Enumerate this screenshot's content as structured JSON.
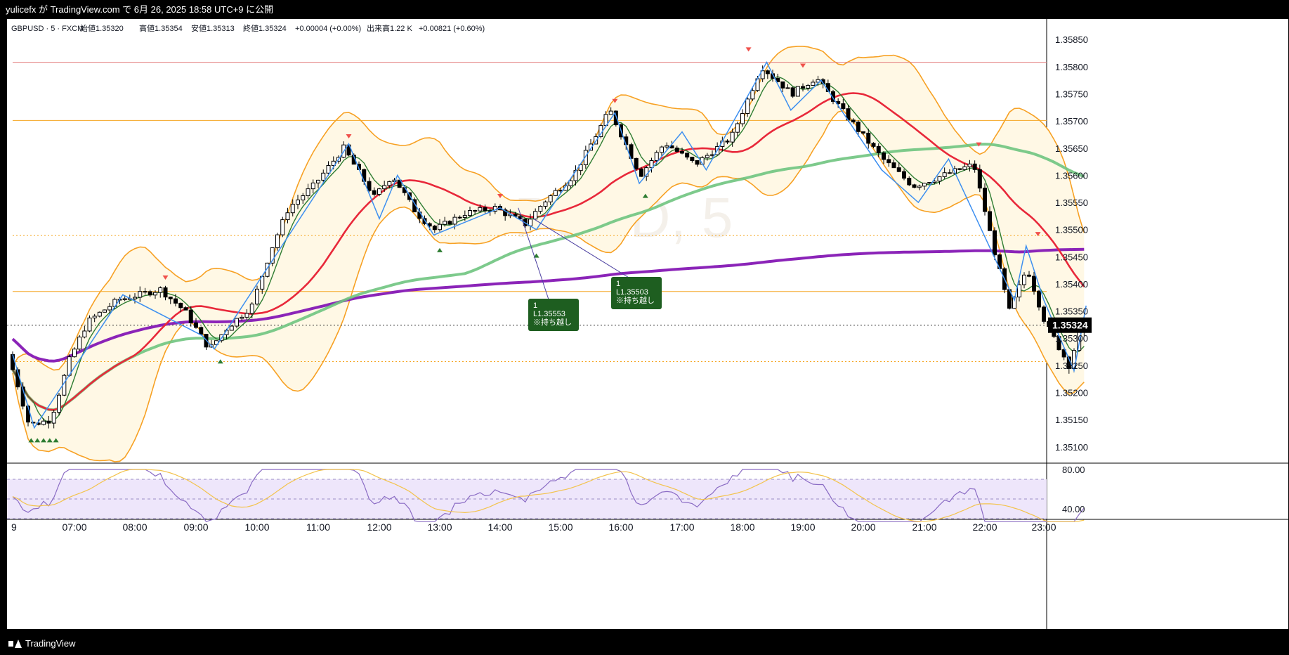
{
  "header": {
    "publish_line": "yulicefx が TradingView.com で 6月 26, 2025 18:58 UTC+9 に公開"
  },
  "legend": {
    "symbol_line": "GBPUSD · 5 · FXCM",
    "open": "始値1.35320",
    "high": "高値1.35354",
    "low": "安値1.35313",
    "close": "終値1.35324",
    "change": "+0.00004 (+0.00%)",
    "volume": "出来高1.22 K",
    "change2": "+0.00821 (+0.60%)"
  },
  "watermark": {
    "symbol": "GBPUSD, 5"
  },
  "footer": {
    "brand": "TradingView"
  },
  "colors": {
    "up_candle": "#ffffff",
    "down_candle": "#000000",
    "ema_red": "#e8283a",
    "ema_green": "#6fc47f",
    "ema_purple": "#8b24b8",
    "bollinger": "#f7a124",
    "bb_fill": "#fff8e5",
    "zigzag": "#3d8ff0",
    "fast_ma": "#2f7d32",
    "hline_orange": "#f5a623",
    "hline_red": "#e27b7b",
    "current_price_bg": "#000000",
    "rsi_line": "#8a6bc4",
    "rsi_ma": "#f3c34c",
    "rsi_band": "#eee6fb",
    "annotation_bg": "#1e5e20",
    "peak_marker": "#f0514b",
    "trough_marker": "#2e7d32"
  },
  "annotations": [
    {
      "line1": "1",
      "line2": "L1.35553",
      "line3": "※持ち越し"
    },
    {
      "line1": "1",
      "line2": "L1.35503",
      "line3": "※持ち越し"
    }
  ],
  "current_price_label": "1.35324",
  "chart_data": {
    "type": "candlestick",
    "symbol": "GBPUSD",
    "timeframe": "5",
    "x_ticks": [
      "9",
      "07:00",
      "08:00",
      "09:00",
      "10:00",
      "11:00",
      "12:00",
      "13:00",
      "14:00",
      "15:00",
      "16:00",
      "17:00",
      "18:00",
      "19:00",
      "20:00",
      "21:00",
      "22:00",
      "23:00"
    ],
    "y_ticks": [
      "1.35850",
      "1.35800",
      "1.35750",
      "1.35700",
      "1.35650",
      "1.35600",
      "1.35550",
      "1.35500",
      "1.35450",
      "1.35400",
      "1.35350",
      "1.35300",
      "1.35250",
      "1.35200",
      "1.35150",
      "1.35100"
    ],
    "ylim": [
      1.3507,
      1.3588
    ],
    "horizontal_lines": [
      {
        "price": 1.35808,
        "style": "solid",
        "color": "red"
      },
      {
        "price": 1.35701,
        "style": "solid",
        "color": "orange"
      },
      {
        "price": 1.35489,
        "style": "dotted",
        "color": "orange"
      },
      {
        "price": 1.35386,
        "style": "solid",
        "color": "orange"
      },
      {
        "price": 1.35324,
        "style": "dotted",
        "color": "black"
      },
      {
        "price": 1.35257,
        "style": "dotted",
        "color": "orange"
      }
    ],
    "close_series_hourly": [
      1.3526,
      1.3538,
      1.3537,
      1.3533,
      1.3535,
      1.3558,
      1.356,
      1.3553,
      1.3554,
      1.3556,
      1.3565,
      1.3566,
      1.3575,
      1.357,
      1.356,
      1.3555,
      1.3533,
      1.3532
    ],
    "rsi": {
      "y_ticks": [
        "80.00",
        "40.00"
      ],
      "ylim": [
        25,
        85
      ],
      "bands": [
        70,
        50,
        30
      ]
    }
  }
}
